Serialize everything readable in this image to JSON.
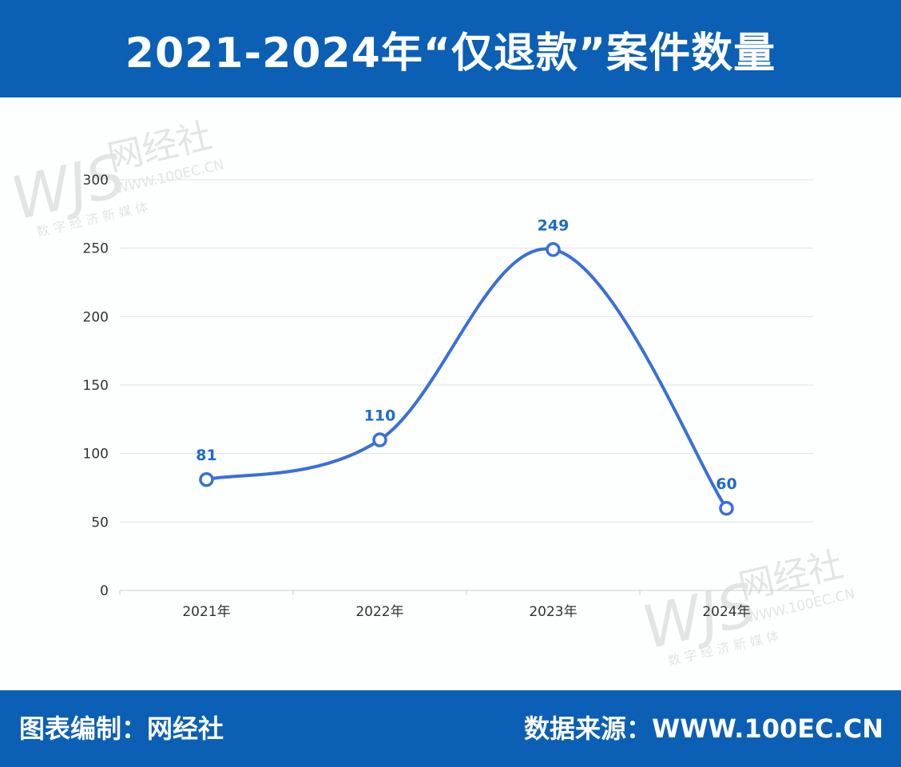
{
  "header": {
    "title": "2021-2024年“仅退款”案件数量"
  },
  "footer": {
    "credit_label": "图表编制：",
    "credit_value": "网经社",
    "source_label": "数据来源：",
    "source_value": "WWW.100EC.CN"
  },
  "watermark": {
    "logo_letters": "WJS",
    "name": "网经社",
    "url": "WWW.100EC.CN",
    "tagline": "数 字 经 济 新 媒 体"
  },
  "colors": {
    "header_bg": "#0b5fb4",
    "line": "#3a6fd6",
    "label": "#1e6cc6",
    "grid": "#dde3ec",
    "axis_text": "#333333"
  },
  "chart_data": {
    "type": "line",
    "categories": [
      "2021年",
      "2022年",
      "2023年",
      "2024年"
    ],
    "series": [
      {
        "values": [
          81,
          110,
          249,
          60
        ]
      }
    ],
    "data_labels": [
      "81",
      "110",
      "249",
      "60"
    ],
    "yticks": [
      "0",
      "50",
      "100",
      "150",
      "200",
      "250",
      "300"
    ],
    "ylim": [
      0,
      300
    ],
    "smooth": true,
    "grid": true
  }
}
